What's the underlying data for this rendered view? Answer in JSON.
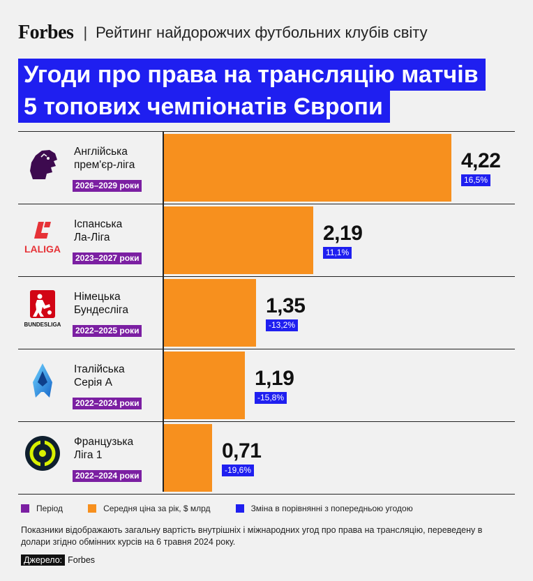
{
  "header": {
    "brand": "Forbes",
    "separator": "|",
    "subtitle": "Рейтинг найдорожчих футбольних клубів світу"
  },
  "title": {
    "line1": "Угоди про права на трансляцію матчів",
    "line2": "5 топових чемпіонатів Європи"
  },
  "colors": {
    "period": "#7b1fa2",
    "price": "#f7901e",
    "change": "#1f1ff0"
  },
  "chart_data": {
    "type": "bar",
    "orientation": "horizontal",
    "unit": "$ млрд",
    "categories": [
      "Англійська прем'єр-ліга",
      "Іспанська Ла-Ліга",
      "Німецька Бундесліга",
      "Італійська Серія А",
      "Французька Ліга 1"
    ],
    "values": [
      4.22,
      2.19,
      1.35,
      1.19,
      0.71
    ],
    "rows": [
      {
        "name1": "Англійська",
        "name2": "прем'єр-ліга",
        "period": "2026–2029 роки",
        "value": 4.22,
        "value_label": "4,22",
        "change": "16,5%",
        "icon": "premier-league-lion-icon"
      },
      {
        "name1": "Іспанська",
        "name2": "Ла-Ліга",
        "period": "2023–2027 роки",
        "value": 2.19,
        "value_label": "2,19",
        "change": "11,1%",
        "icon": "laliga-logo-icon"
      },
      {
        "name1": "Німецька",
        "name2": "Бундесліга",
        "period": "2022–2025 роки",
        "value": 1.35,
        "value_label": "1,35",
        "change": "-13,2%",
        "icon": "bundesliga-logo-icon"
      },
      {
        "name1": "Італійська",
        "name2": "Серія А",
        "period": "2022–2024 роки",
        "value": 1.19,
        "value_label": "1,19",
        "change": "-15,8%",
        "icon": "serie-a-logo-icon"
      },
      {
        "name1": "Французька",
        "name2": "Ліга 1",
        "period": "2022–2024 роки",
        "value": 0.71,
        "value_label": "0,71",
        "change": "-19,6%",
        "icon": "ligue-1-logo-icon"
      }
    ]
  },
  "legend": {
    "period": "Період",
    "price": "Середня ціна за рік, $ млрд",
    "change": "Зміна в порівнянні з попередньою угодою"
  },
  "note": "Показники відображають загальну вартість внутрішніх і міжнародних угод про права на трансляцію, переведену в долари згідно обмінних курсів на 6 травня 2024 року.",
  "source": {
    "label": "Джерело:",
    "value": "Forbes"
  }
}
